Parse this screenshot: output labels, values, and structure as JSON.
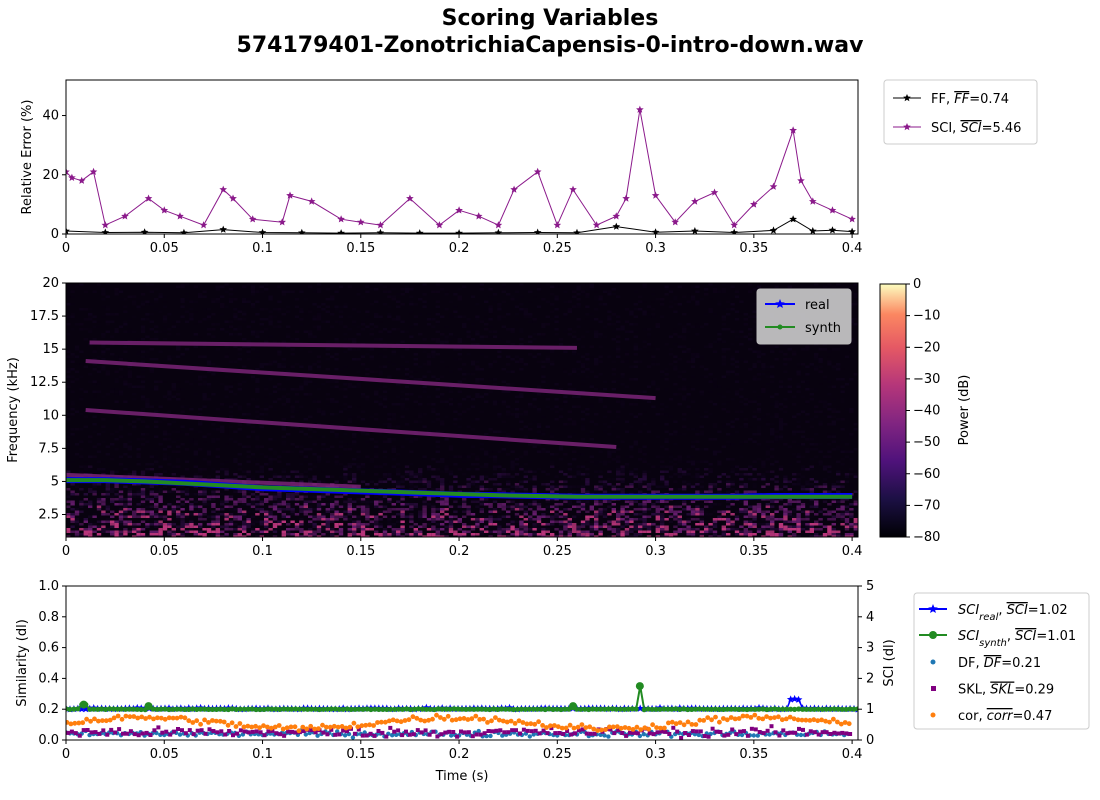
{
  "header": {
    "title": "Scoring Variables",
    "subtitle": "574179401-ZonotrichiaCapensis-0-intro-down.wav"
  },
  "chart_data": [
    {
      "type": "line",
      "ylabel": "Relative Error (%)",
      "xlabel": "",
      "xlim": [
        0,
        0.403
      ],
      "ylim": [
        0,
        52
      ],
      "xticks": [
        "0",
        "0.05",
        "0.1",
        "0.15",
        "0.2",
        "0.25",
        "0.3",
        "0.35",
        "0.4"
      ],
      "yticks": [
        "0",
        "20",
        "40"
      ],
      "legend_position": "outside-top-right",
      "series": [
        {
          "name_text": "FF, ",
          "name_bar": "FF",
          "name_tail": "=0.74",
          "color": "#000000",
          "x": [
            0,
            0.02,
            0.04,
            0.06,
            0.08,
            0.1,
            0.12,
            0.14,
            0.16,
            0.18,
            0.2,
            0.22,
            0.24,
            0.26,
            0.28,
            0.3,
            0.32,
            0.34,
            0.36,
            0.37,
            0.38,
            0.39,
            0.4
          ],
          "y": [
            1,
            0.5,
            0.6,
            0.4,
            1.5,
            0.5,
            0.4,
            0.3,
            0.4,
            0.3,
            0.3,
            0.4,
            0.5,
            0.4,
            2.5,
            0.6,
            1,
            0.5,
            1.2,
            5,
            1,
            1.3,
            0.8
          ]
        },
        {
          "name_text": "SCI, ",
          "name_bar": "SCI",
          "name_tail": "=5.46",
          "color": "#8b1a8b",
          "x": [
            0,
            0.003,
            0.008,
            0.014,
            0.02,
            0.03,
            0.042,
            0.05,
            0.058,
            0.07,
            0.08,
            0.085,
            0.095,
            0.11,
            0.114,
            0.125,
            0.14,
            0.15,
            0.16,
            0.175,
            0.19,
            0.2,
            0.21,
            0.22,
            0.228,
            0.24,
            0.25,
            0.258,
            0.27,
            0.28,
            0.285,
            0.292,
            0.3,
            0.31,
            0.32,
            0.33,
            0.34,
            0.35,
            0.36,
            0.37,
            0.374,
            0.38,
            0.39,
            0.4
          ],
          "y": [
            21,
            19,
            18,
            21,
            3,
            6,
            12,
            8,
            6,
            3,
            15,
            12,
            5,
            4,
            13,
            11,
            5,
            4,
            3,
            12,
            3,
            8,
            6,
            3,
            15,
            21,
            3,
            15,
            3,
            6,
            12,
            42,
            13,
            4,
            11,
            14,
            3,
            10,
            16,
            35,
            18,
            11,
            8,
            5
          ]
        }
      ]
    },
    {
      "type": "heatmap",
      "ylabel": "Frequency (kHz)",
      "xlim": [
        0,
        0.403
      ],
      "ylim": [
        0.8,
        20
      ],
      "xticks": [
        "0",
        "0.05",
        "0.1",
        "0.15",
        "0.2",
        "0.25",
        "0.3",
        "0.35",
        "0.4"
      ],
      "yticks": [
        "2.5",
        "5",
        "7.5",
        "10",
        "12.5",
        "15",
        "17.5",
        "20"
      ],
      "colorbar": {
        "label": "Power (dB)",
        "range": [
          -80,
          0
        ],
        "ticks": [
          "0",
          "−10",
          "−20",
          "−30",
          "−40",
          "−50",
          "−60",
          "−70",
          "−80"
        ]
      },
      "legend_position": "top-right",
      "harmonics": [
        {
          "x": [
            0.012,
            0.26
          ],
          "y": [
            15.5,
            15.1
          ]
        },
        {
          "x": [
            0.01,
            0.3
          ],
          "y": [
            14.1,
            11.3
          ]
        },
        {
          "x": [
            0.01,
            0.28
          ],
          "y": [
            10.4,
            7.6
          ]
        },
        {
          "x": [
            0.0,
            0.15
          ],
          "y": [
            5.5,
            4.6
          ]
        }
      ],
      "series": [
        {
          "name": "real",
          "color": "#0000ff",
          "x": [
            0,
            0.02,
            0.04,
            0.06,
            0.08,
            0.1,
            0.12,
            0.14,
            0.16,
            0.18,
            0.2,
            0.22,
            0.24,
            0.26,
            0.28,
            0.3,
            0.32,
            0.34,
            0.36,
            0.38,
            0.4
          ],
          "y": [
            5.1,
            5.1,
            5.0,
            4.9,
            4.7,
            4.5,
            4.4,
            4.3,
            4.2,
            4.1,
            4.0,
            3.95,
            3.9,
            3.85,
            3.85,
            3.85,
            3.85,
            3.85,
            3.9,
            3.9,
            3.9
          ]
        },
        {
          "name": "synth",
          "color": "#228b22",
          "x": [
            0,
            0.02,
            0.04,
            0.06,
            0.08,
            0.1,
            0.12,
            0.14,
            0.16,
            0.18,
            0.2,
            0.22,
            0.24,
            0.26,
            0.28,
            0.3,
            0.32,
            0.34,
            0.36,
            0.38,
            0.4
          ],
          "y": [
            5.1,
            5.1,
            5.0,
            4.85,
            4.7,
            4.55,
            4.45,
            4.35,
            4.25,
            4.15,
            4.05,
            3.95,
            3.9,
            3.85,
            3.85,
            3.85,
            3.85,
            3.85,
            3.85,
            3.85,
            3.85
          ]
        }
      ]
    },
    {
      "type": "scatter",
      "ylabel": "Similarity (dl)",
      "ylabel_right": "SCI (dl)",
      "xlabel": "Time (s)",
      "xlim": [
        0,
        0.403
      ],
      "ylim": [
        0,
        1
      ],
      "ylim_right": [
        0,
        5
      ],
      "xticks": [
        "0",
        "0.05",
        "0.1",
        "0.15",
        "0.2",
        "0.25",
        "0.3",
        "0.35",
        "0.4"
      ],
      "yticks": [
        "0.0",
        "0.2",
        "0.4",
        "0.6",
        "0.8",
        "1.0"
      ],
      "yticks_right": [
        "0",
        "1",
        "2",
        "3",
        "4",
        "5"
      ],
      "legend_position": "outside-right",
      "series": [
        {
          "name_sub": "real",
          "name_tail": "=1.02",
          "color": "#0000ff",
          "axis": "right",
          "mean": 1.02
        },
        {
          "name_sub": "synth",
          "name_tail": "=1.01",
          "color": "#228b22",
          "axis": "right",
          "mean": 1.0,
          "spikes": [
            {
              "x": 0.009,
              "y": 1.15
            },
            {
              "x": 0.042,
              "y": 1.1
            },
            {
              "x": 0.258,
              "y": 1.1
            },
            {
              "x": 0.292,
              "y": 1.75
            }
          ]
        },
        {
          "name_text": "DF, ",
          "name_bar": "DF",
          "name_tail": "=0.21",
          "color": "#1f77b4",
          "axis": "left",
          "mean": 0.04
        },
        {
          "name_text": "SKL, ",
          "name_bar": "SKL",
          "name_tail": "=0.29",
          "color": "#800080",
          "axis": "left",
          "mean": 0.05
        },
        {
          "name_text": "cor, ",
          "name_bar": "corr",
          "name_tail": "=0.47",
          "color": "#ff7f0e",
          "axis": "left",
          "mean": 0.1
        }
      ]
    }
  ],
  "colors": {
    "real": "#0000ff",
    "synth": "#228b22",
    "sci": "#8b1a8b",
    "ff": "#000000"
  }
}
